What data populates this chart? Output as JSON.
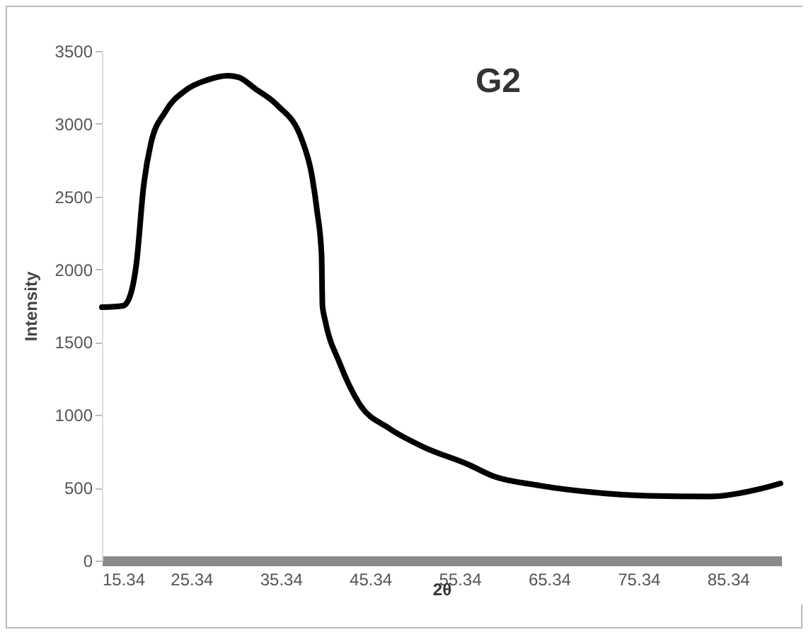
{
  "chart_data": {
    "type": "line",
    "title": "G2",
    "xlabel": "2θ",
    "ylabel": "Intensity",
    "xlim": [
      15.34,
      91.3
    ],
    "xticks": [
      15.34,
      25.34,
      35.34,
      45.34,
      55.34,
      65.34,
      75.34,
      85.34
    ],
    "ylim": [
      0,
      3500
    ],
    "yticks": [
      0,
      500,
      1000,
      1500,
      2000,
      2500,
      3000,
      3500
    ],
    "grid": false,
    "legend": false,
    "marker": "none",
    "line_style": "solid",
    "x": [
      15.34,
      17.7,
      18.5,
      19.2,
      20.0,
      20.8,
      22.4,
      24.7,
      27.1,
      29.4,
      30.6,
      32.5,
      34.9,
      37.7,
      38.8,
      39.4,
      39.9,
      40.0,
      40.3,
      41.9,
      44.2,
      47.4,
      51.3,
      56.3,
      59.1,
      63.8,
      70.0,
      76.3,
      83.3,
      88.8,
      91.2
    ],
    "series": [
      {
        "color": "#000000",
        "values": [
          1740,
          1750,
          1820,
          2040,
          2570,
          2860,
          3080,
          3230,
          3300,
          3330,
          3320,
          3240,
          3130,
          2890,
          2650,
          2400,
          2100,
          1750,
          1650,
          1360,
          1070,
          910,
          780,
          660,
          580,
          520,
          470,
          445,
          440,
          490,
          530
        ]
      }
    ]
  }
}
